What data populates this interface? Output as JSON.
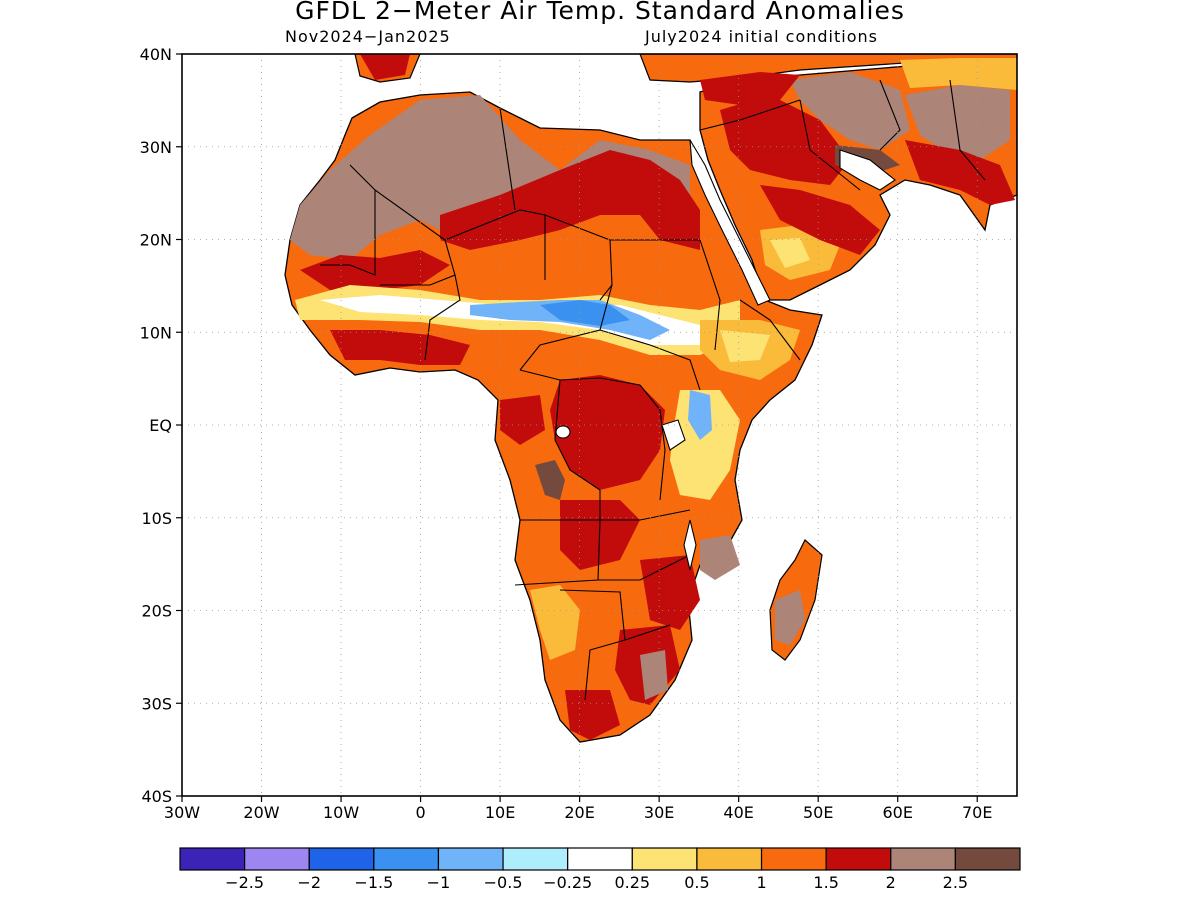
{
  "title": "GFDL 2−Meter Air Temp. Standard Anomalies",
  "subtitle_left": "Nov2024−Jan2025",
  "subtitle_right": "July2024 initial conditions",
  "lat_labels": [
    "40N",
    "30N",
    "20N",
    "10N",
    "EQ",
    "10S",
    "20S",
    "30S",
    "40S"
  ],
  "lon_labels": [
    "30W",
    "20W",
    "10W",
    "0",
    "10E",
    "20E",
    "30E",
    "40E",
    "50E",
    "60E",
    "70E"
  ],
  "colorbar": {
    "colors": [
      "#3b23b8",
      "#9d86f2",
      "#1f63e8",
      "#3a91ef",
      "#71b3f8",
      "#aeeefc",
      "#ffffff",
      "#fde373",
      "#fbbb3a",
      "#f86a0e",
      "#c20b0b",
      "#ad8478",
      "#754a3e"
    ],
    "labels": [
      "−2.5",
      "−2",
      "−1.5",
      "−1",
      "−0.5",
      "−0.25",
      "0.25",
      "0.5",
      "1",
      "1.5",
      "2",
      "2.5"
    ]
  }
}
